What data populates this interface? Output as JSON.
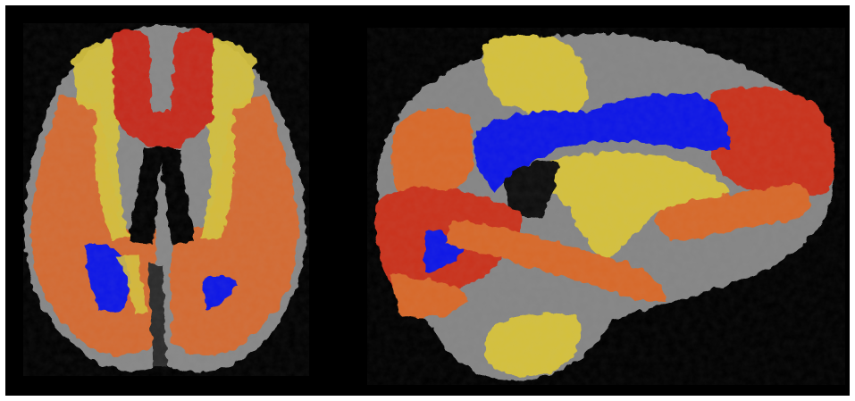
{
  "image": {
    "description_tag": "brain-mri-tract-overlay",
    "views": [
      {
        "name": "axial-view"
      },
      {
        "name": "sagittal-view"
      }
    ],
    "overlay_colors": {
      "yellow": "#d8c23a",
      "orange": "#d8692a",
      "red": "#c8281e",
      "blue": "#0a10e8",
      "gray_tissue": "#8a8a8a"
    }
  }
}
